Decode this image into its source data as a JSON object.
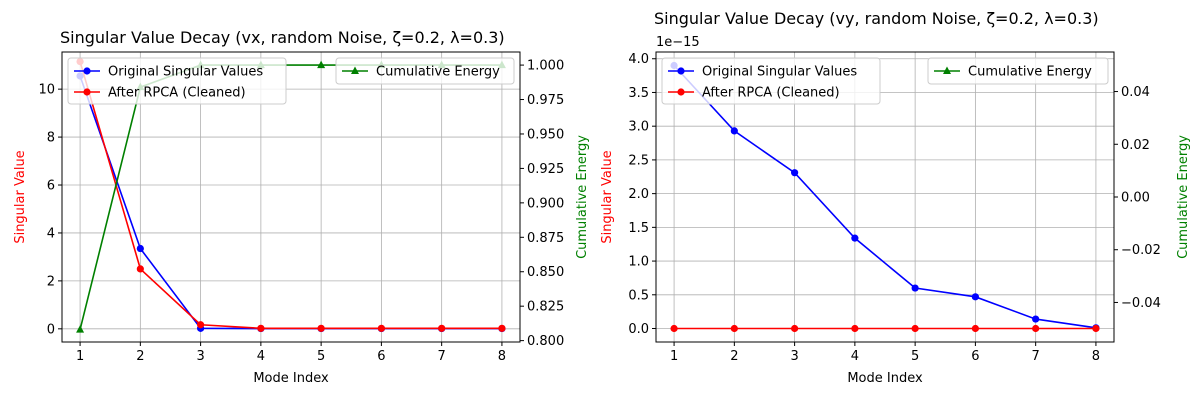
{
  "colors": {
    "original": "#0000ff",
    "cleaned": "#ff0000",
    "energy": "#008000",
    "grid": "#b0b0b0",
    "axis": "#000000"
  },
  "chart_data": [
    {
      "type": "line",
      "title": "Singular Value Decay (vx, random Noise, ζ=0.2, λ=0.3)",
      "xlabel": "Mode Index",
      "ylabel": "Singular Value",
      "y2label": "Cumulative Energy",
      "x": [
        1,
        2,
        3,
        4,
        5,
        6,
        7,
        8
      ],
      "xlim": [
        0.7,
        8.3
      ],
      "ylim": [
        -0.55,
        11.55
      ],
      "y2lim": [
        0.799,
        1.0095
      ],
      "yticks": [
        0,
        2,
        4,
        6,
        8,
        10
      ],
      "y2ticks": [
        0.8,
        0.825,
        0.85,
        0.875,
        0.9,
        0.925,
        0.95,
        0.975,
        1.0
      ],
      "y2tick_labels": [
        "0.800",
        "0.825",
        "0.850",
        "0.875",
        "0.900",
        "0.925",
        "0.950",
        "0.975",
        "1.000"
      ],
      "grid": true,
      "legend_left": "upper-left",
      "legend_right": "upper-right",
      "series": [
        {
          "name": "Original Singular Values",
          "axis": "left",
          "marker": "circle",
          "values": [
            10.55,
            3.35,
            0.02,
            0.01,
            0.01,
            0.01,
            0.01,
            0.01
          ]
        },
        {
          "name": "After RPCA (Cleaned)",
          "axis": "left",
          "marker": "circle",
          "values": [
            11.15,
            2.5,
            0.17,
            0.02,
            0.02,
            0.02,
            0.02,
            0.02
          ]
        }
      ],
      "energy_series": {
        "name": "Cumulative Energy",
        "axis": "right",
        "marker": "triangle",
        "values": [
          0.808,
          0.984,
          1.0,
          1.0,
          1.0,
          1.0,
          1.0,
          1.0
        ]
      }
    },
    {
      "type": "line",
      "title": "Singular Value Decay (vy, random Noise, ζ=0.2, λ=0.3)",
      "xlabel": "Mode Index",
      "ylabel": "Singular Value",
      "y2label": "Cumulative Energy",
      "y_offset_label": "1e−15",
      "x": [
        1,
        2,
        3,
        4,
        5,
        6,
        7,
        8
      ],
      "xlim": [
        0.7,
        8.3
      ],
      "ylim": [
        -0.2,
        4.1
      ],
      "y2lim": [
        -0.055,
        0.055
      ],
      "yticks": [
        0,
        0.5,
        1.0,
        1.5,
        2.0,
        2.5,
        3.0,
        3.5,
        4.0
      ],
      "ytick_labels": [
        "0.0",
        "0.5",
        "1.0",
        "1.5",
        "2.0",
        "2.5",
        "3.0",
        "3.5",
        "4.0"
      ],
      "y2ticks": [
        -0.04,
        -0.02,
        0.0,
        0.02,
        0.04
      ],
      "y2tick_labels": [
        "−0.04",
        "−0.02",
        "0.00",
        "0.02",
        "0.04"
      ],
      "grid": true,
      "legend_left": "upper-left",
      "legend_right": "upper-right",
      "series": [
        {
          "name": "Original Singular Values",
          "axis": "left",
          "marker": "circle",
          "values": [
            3.9,
            2.93,
            2.31,
            1.34,
            0.6,
            0.47,
            0.14,
            0.01
          ]
        },
        {
          "name": "After RPCA (Cleaned)",
          "axis": "left",
          "marker": "circle",
          "values": [
            0,
            0,
            0,
            0,
            0,
            0,
            0,
            0
          ]
        }
      ],
      "energy_series": {
        "name": "Cumulative Energy",
        "axis": "right",
        "marker": "triangle",
        "values": []
      }
    }
  ]
}
